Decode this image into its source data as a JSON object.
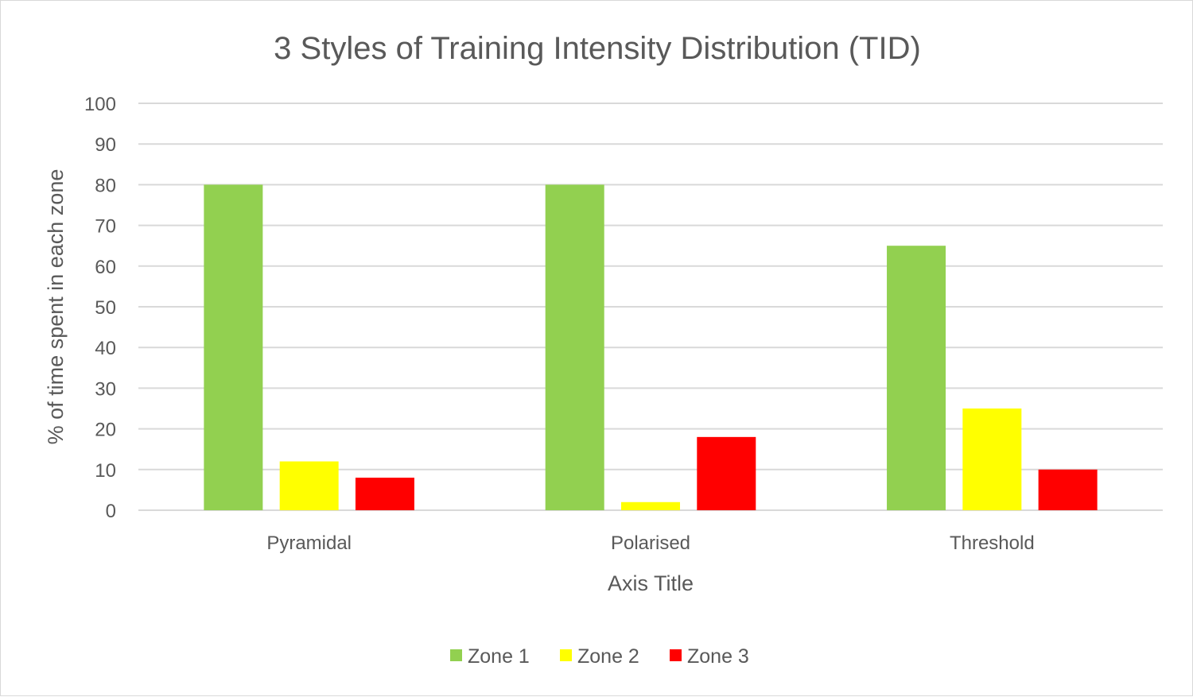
{
  "chart_data": {
    "type": "bar",
    "title": "3 Styles of Training Intensity Distribution (TID)",
    "xlabel": "Axis Title",
    "ylabel": "% of time spent in each zone",
    "categories": [
      "Pyramidal",
      "Polarised",
      "Threshold"
    ],
    "series": [
      {
        "name": "Zone 1",
        "color": "#92d050",
        "values": [
          80,
          80,
          65
        ]
      },
      {
        "name": "Zone 2",
        "color": "#ffff00",
        "values": [
          12,
          2,
          25
        ]
      },
      {
        "name": "Zone 3",
        "color": "#ff0000",
        "values": [
          8,
          18,
          10
        ]
      }
    ],
    "ylim": [
      0,
      100
    ],
    "yticks": [
      0,
      10,
      20,
      30,
      40,
      50,
      60,
      70,
      80,
      90,
      100
    ],
    "grid": true,
    "legend_position": "bottom"
  },
  "colors": {
    "gridline": "#d9d9d9",
    "text": "#595959",
    "border": "#d9d9d9"
  }
}
